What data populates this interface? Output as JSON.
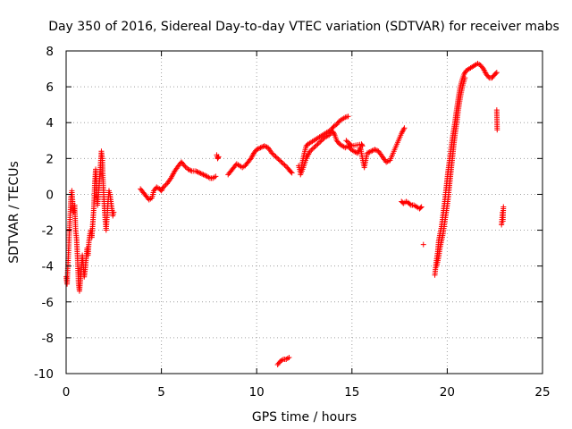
{
  "chart_data": {
    "type": "scatter",
    "title": "Day 350 of 2016, Sidereal Day-to-day VTEC variation (SDTVAR) for receiver mabs",
    "xlabel": "GPS time / hours",
    "ylabel": "SDTVAR / TECUs",
    "xlim": [
      0,
      25
    ],
    "ylim": [
      -10,
      8
    ],
    "xticks": [
      0,
      5,
      10,
      15,
      20,
      25
    ],
    "yticks": [
      -10,
      -8,
      -6,
      -4,
      -2,
      0,
      2,
      4,
      6,
      8
    ],
    "xtick_labels": [
      "0",
      "5",
      "10",
      "15",
      "20",
      "25"
    ],
    "ytick_labels": [
      "-10",
      "-8",
      "-6",
      "-4",
      "-2",
      "0",
      "2",
      "4",
      "6",
      "8"
    ],
    "grid": true,
    "marker": "+",
    "marker_color": "#ff0000",
    "series": [
      {
        "name": "SDTVAR",
        "segments": [
          [
            [
              0.0,
              -4.6
            ],
            [
              0.05,
              -5.0
            ],
            [
              0.1,
              -3.8
            ],
            [
              0.15,
              -2.6
            ],
            [
              0.2,
              -1.4
            ],
            [
              0.25,
              -0.2
            ],
            [
              0.3,
              0.2
            ],
            [
              0.35,
              -0.5
            ],
            [
              0.4,
              -1.0
            ],
            [
              0.45,
              -0.6
            ],
            [
              0.5,
              -2.0
            ],
            [
              0.55,
              -2.5
            ],
            [
              0.6,
              -3.6
            ],
            [
              0.65,
              -5.0
            ],
            [
              0.7,
              -5.4
            ],
            [
              0.75,
              -4.8
            ],
            [
              0.8,
              -4.2
            ],
            [
              0.85,
              -3.4
            ],
            [
              0.9,
              -4.0
            ],
            [
              0.95,
              -4.6
            ],
            [
              1.0,
              -4.2
            ],
            [
              1.05,
              -3.6
            ],
            [
              1.1,
              -3.0
            ],
            [
              1.15,
              -3.4
            ],
            [
              1.2,
              -2.6
            ],
            [
              1.25,
              -2.2
            ],
            [
              1.3,
              -2.0
            ],
            [
              1.35,
              -2.4
            ],
            [
              1.4,
              -1.6
            ],
            [
              1.45,
              -0.8
            ],
            [
              1.5,
              0.6
            ],
            [
              1.55,
              1.4
            ],
            [
              1.6,
              0.4
            ],
            [
              1.65,
              -0.6
            ],
            [
              1.7,
              0.0
            ],
            [
              1.75,
              0.8
            ],
            [
              1.8,
              1.6
            ],
            [
              1.85,
              2.4
            ],
            [
              1.9,
              2.0
            ],
            [
              1.95,
              0.4
            ],
            [
              2.0,
              -0.6
            ],
            [
              2.05,
              -1.4
            ],
            [
              2.1,
              -2.0
            ],
            [
              2.15,
              -1.2
            ],
            [
              2.2,
              -0.4
            ],
            [
              2.25,
              0.2
            ],
            [
              2.3,
              0.0
            ],
            [
              2.35,
              -0.4
            ],
            [
              2.4,
              -0.8
            ],
            [
              2.45,
              -1.2
            ],
            [
              2.5,
              -1.0
            ]
          ],
          [
            [
              3.9,
              0.3
            ],
            [
              4.05,
              0.1
            ],
            [
              4.2,
              -0.1
            ],
            [
              4.35,
              -0.3
            ],
            [
              4.5,
              -0.2
            ],
            [
              4.6,
              0.2
            ],
            [
              4.75,
              0.4
            ],
            [
              4.9,
              0.3
            ],
            [
              5.0,
              0.2
            ],
            [
              5.1,
              0.4
            ],
            [
              5.3,
              0.6
            ],
            [
              5.5,
              0.9
            ],
            [
              5.7,
              1.3
            ],
            [
              5.9,
              1.6
            ],
            [
              6.05,
              1.8
            ],
            [
              6.2,
              1.6
            ],
            [
              6.4,
              1.4
            ],
            [
              6.6,
              1.3
            ],
            [
              6.8,
              1.3
            ],
            [
              7.0,
              1.2
            ],
            [
              7.2,
              1.1
            ],
            [
              7.4,
              1.0
            ],
            [
              7.55,
              0.9
            ],
            [
              7.7,
              0.9
            ],
            [
              7.85,
              1.0
            ]
          ],
          [
            [
              7.9,
              2.2
            ],
            [
              7.95,
              2.0
            ],
            [
              8.0,
              2.1
            ]
          ],
          [
            [
              8.5,
              1.1
            ],
            [
              8.65,
              1.3
            ],
            [
              8.8,
              1.5
            ],
            [
              8.95,
              1.7
            ],
            [
              9.1,
              1.6
            ],
            [
              9.25,
              1.5
            ],
            [
              9.4,
              1.6
            ],
            [
              9.55,
              1.8
            ],
            [
              9.7,
              2.0
            ],
            [
              9.85,
              2.3
            ],
            [
              10.0,
              2.5
            ],
            [
              10.2,
              2.6
            ],
            [
              10.4,
              2.7
            ],
            [
              10.6,
              2.6
            ],
            [
              10.8,
              2.3
            ],
            [
              11.0,
              2.1
            ],
            [
              11.2,
              1.9
            ],
            [
              11.4,
              1.7
            ],
            [
              11.6,
              1.5
            ],
            [
              11.75,
              1.3
            ],
            [
              11.85,
              1.2
            ]
          ],
          [
            [
              11.1,
              -9.5
            ],
            [
              11.25,
              -9.3
            ],
            [
              11.4,
              -9.2
            ],
            [
              11.55,
              -9.2
            ],
            [
              11.7,
              -9.1
            ]
          ],
          [
            [
              12.2,
              1.6
            ],
            [
              12.3,
              1.2
            ],
            [
              12.4,
              1.8
            ],
            [
              12.5,
              2.3
            ],
            [
              12.6,
              2.7
            ],
            [
              12.7,
              2.8
            ],
            [
              12.85,
              2.9
            ],
            [
              13.0,
              3.0
            ],
            [
              13.15,
              3.1
            ],
            [
              13.3,
              3.2
            ],
            [
              13.45,
              3.3
            ],
            [
              13.6,
              3.4
            ],
            [
              13.75,
              3.5
            ],
            [
              13.9,
              3.6
            ],
            [
              14.05,
              3.8
            ],
            [
              14.2,
              3.9
            ],
            [
              14.35,
              4.1
            ],
            [
              14.5,
              4.2
            ],
            [
              14.65,
              4.3
            ],
            [
              14.8,
              4.35
            ]
          ],
          [
            [
              12.3,
              1.1
            ],
            [
              12.45,
              1.5
            ],
            [
              12.6,
              2.0
            ],
            [
              12.8,
              2.4
            ],
            [
              13.0,
              2.6
            ],
            [
              13.2,
              2.8
            ],
            [
              13.4,
              3.0
            ],
            [
              13.6,
              3.2
            ],
            [
              13.8,
              3.3
            ],
            [
              14.0,
              3.5
            ],
            [
              14.1,
              3.3
            ],
            [
              14.2,
              3.0
            ],
            [
              14.35,
              2.8
            ],
            [
              14.5,
              2.7
            ],
            [
              14.65,
              2.6
            ],
            [
              14.8,
              2.7
            ],
            [
              14.95,
              2.5
            ],
            [
              15.1,
              2.4
            ],
            [
              15.3,
              2.3
            ],
            [
              15.45,
              2.6
            ],
            [
              15.55,
              2.0
            ],
            [
              15.65,
              1.5
            ],
            [
              15.8,
              2.3
            ],
            [
              16.0,
              2.4
            ],
            [
              16.2,
              2.5
            ],
            [
              16.4,
              2.4
            ],
            [
              16.6,
              2.1
            ],
            [
              16.8,
              1.8
            ],
            [
              17.0,
              1.9
            ],
            [
              17.2,
              2.4
            ],
            [
              17.4,
              2.9
            ],
            [
              17.6,
              3.4
            ],
            [
              17.75,
              3.7
            ]
          ],
          [
            [
              14.7,
              3.0
            ],
            [
              14.9,
              2.8
            ],
            [
              15.0,
              2.7
            ],
            [
              15.5,
              2.8
            ],
            [
              15.55,
              2.7
            ]
          ],
          [
            [
              17.6,
              -0.4
            ],
            [
              17.7,
              -0.5
            ],
            [
              17.85,
              -0.4
            ],
            [
              18.0,
              -0.5
            ],
            [
              18.1,
              -0.6
            ],
            [
              18.25,
              -0.6
            ],
            [
              18.4,
              -0.7
            ],
            [
              18.55,
              -0.8
            ],
            [
              18.65,
              -0.7
            ]
          ],
          [
            [
              18.75,
              -2.8
            ]
          ],
          [
            [
              19.35,
              -4.5
            ],
            [
              19.42,
              -3.8
            ],
            [
              19.5,
              -3.2
            ],
            [
              19.55,
              -2.6
            ],
            [
              19.62,
              -2.2
            ],
            [
              19.7,
              -1.8
            ],
            [
              19.76,
              -1.3
            ],
            [
              19.82,
              -0.8
            ],
            [
              19.88,
              -0.3
            ],
            [
              19.93,
              0.2
            ],
            [
              19.98,
              0.7
            ],
            [
              20.03,
              1.2
            ],
            [
              20.08,
              1.6
            ],
            [
              20.13,
              2.0
            ],
            [
              20.18,
              2.4
            ],
            [
              20.23,
              2.8
            ],
            [
              20.28,
              3.2
            ],
            [
              20.34,
              3.6
            ],
            [
              20.4,
              4.0
            ],
            [
              20.46,
              4.5
            ],
            [
              20.53,
              5.0
            ],
            [
              20.6,
              5.5
            ],
            [
              20.68,
              6.0
            ],
            [
              20.78,
              6.4
            ],
            [
              20.88,
              6.7
            ],
            [
              21.0,
              6.9
            ],
            [
              21.15,
              7.0
            ],
            [
              21.3,
              7.1
            ],
            [
              21.45,
              7.2
            ],
            [
              21.6,
              7.3
            ],
            [
              21.75,
              7.2
            ],
            [
              21.9,
              7.0
            ],
            [
              22.05,
              6.7
            ],
            [
              22.2,
              6.5
            ],
            [
              22.35,
              6.5
            ],
            [
              22.5,
              6.7
            ],
            [
              22.6,
              6.8
            ]
          ],
          [
            [
              19.45,
              -4.0
            ],
            [
              19.55,
              -3.5
            ],
            [
              19.62,
              -3.0
            ],
            [
              19.7,
              -2.6
            ],
            [
              19.78,
              -2.2
            ],
            [
              19.85,
              -1.7
            ],
            [
              19.92,
              -1.2
            ],
            [
              19.99,
              -0.7
            ],
            [
              20.05,
              -0.2
            ],
            [
              20.11,
              0.4
            ],
            [
              20.17,
              1.0
            ],
            [
              20.23,
              1.6
            ],
            [
              20.29,
              2.2
            ],
            [
              20.35,
              2.8
            ],
            [
              20.42,
              3.4
            ],
            [
              20.5,
              4.0
            ],
            [
              20.57,
              4.6
            ],
            [
              20.64,
              5.1
            ],
            [
              20.72,
              5.6
            ],
            [
              20.82,
              6.1
            ],
            [
              20.93,
              6.5
            ]
          ],
          [
            [
              22.6,
              4.7
            ],
            [
              22.62,
              3.6
            ]
          ],
          [
            [
              22.85,
              -1.7
            ],
            [
              22.88,
              -1.3
            ],
            [
              22.9,
              -1.0
            ],
            [
              22.92,
              -1.5
            ],
            [
              22.95,
              -0.7
            ]
          ]
        ]
      }
    ]
  }
}
